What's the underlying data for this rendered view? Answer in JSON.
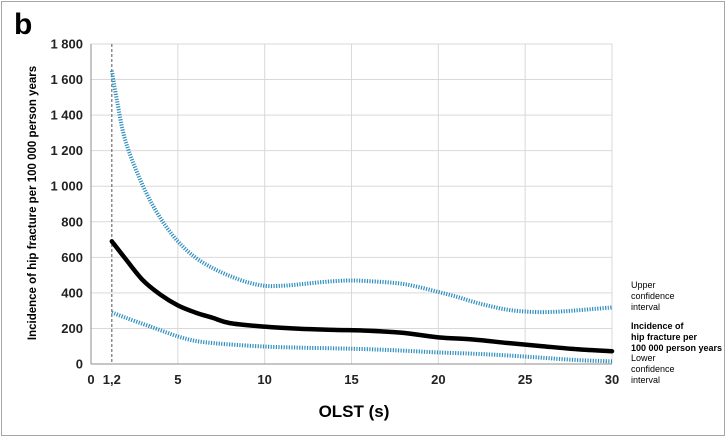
{
  "chart_data": {
    "type": "line",
    "panel_label": "b",
    "xlabel": "OLST (s)",
    "ylabel": "Incidence of hip fracture per 100 000 person years",
    "xlim": [
      0,
      30
    ],
    "ylim": [
      0,
      1800
    ],
    "x_ticks": [
      {
        "value": 0,
        "label": "0"
      },
      {
        "value": 1.2,
        "label": "1,2"
      },
      {
        "value": 5,
        "label": "5"
      },
      {
        "value": 10,
        "label": "10"
      },
      {
        "value": 15,
        "label": "15"
      },
      {
        "value": 20,
        "label": "20"
      },
      {
        "value": 25,
        "label": "25"
      },
      {
        "value": 30,
        "label": "30"
      }
    ],
    "y_ticks": [
      {
        "value": 0,
        "label": "0"
      },
      {
        "value": 200,
        "label": "200"
      },
      {
        "value": 400,
        "label": "400"
      },
      {
        "value": 600,
        "label": "600"
      },
      {
        "value": 800,
        "label": "800"
      },
      {
        "value": 1000,
        "label": "1 000"
      },
      {
        "value": 1200,
        "label": "1 200"
      },
      {
        "value": 1400,
        "label": "1 400"
      },
      {
        "value": 1600,
        "label": "1 600"
      },
      {
        "value": 1800,
        "label": "1 800"
      }
    ],
    "grid": true,
    "reference_line_x": 1.2,
    "legend_position": "right",
    "series": [
      {
        "name": "Upper confidence interval",
        "legend_lines": [
          "Upper",
          "confidence",
          "interval"
        ],
        "style": "dotted",
        "color": "#2e8fc0",
        "x": [
          1.2,
          1.5,
          2,
          3,
          4,
          5,
          6,
          7,
          8,
          9,
          10,
          11,
          12,
          13,
          14,
          15,
          16,
          17,
          18,
          19,
          20,
          21,
          22,
          23,
          24,
          25,
          26,
          27,
          28,
          29,
          30
        ],
        "y": [
          1650,
          1480,
          1250,
          1000,
          820,
          690,
          600,
          540,
          495,
          460,
          440,
          440,
          448,
          458,
          466,
          470,
          466,
          460,
          450,
          430,
          405,
          380,
          350,
          325,
          305,
          295,
          292,
          295,
          302,
          310,
          318
        ]
      },
      {
        "name": "Incidence of hip fracture per 100 000 person years",
        "legend_lines": [
          "Incidence of",
          "hip fracture per",
          "100 000 person years"
        ],
        "style": "solid",
        "color": "#000000",
        "x": [
          1.2,
          2,
          3,
          4,
          5,
          6,
          7,
          8,
          10,
          12,
          14,
          16,
          18,
          20,
          22,
          24,
          26,
          28,
          30
        ],
        "y": [
          690,
          590,
          470,
          390,
          330,
          290,
          260,
          230,
          210,
          198,
          192,
          187,
          175,
          150,
          138,
          118,
          100,
          83,
          72
        ]
      },
      {
        "name": "Lower confidence interval",
        "legend_lines": [
          "Lower",
          "confidence",
          "interval"
        ],
        "style": "dotted",
        "color": "#2e8fc0",
        "x": [
          1.2,
          2,
          3,
          4,
          5,
          6,
          7,
          8,
          10,
          12,
          14,
          16,
          18,
          20,
          22,
          24,
          26,
          28,
          30
        ],
        "y": [
          290,
          260,
          225,
          190,
          155,
          130,
          118,
          110,
          98,
          92,
          88,
          83,
          75,
          65,
          58,
          48,
          35,
          22,
          15
        ]
      }
    ]
  }
}
